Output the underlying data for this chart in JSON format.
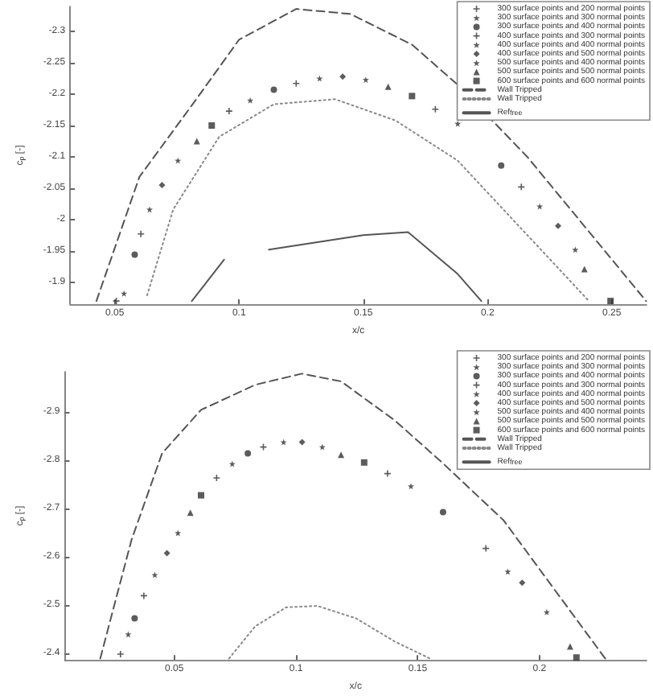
{
  "chart_data": [
    {
      "type": "scatter",
      "xlabel": "x/c",
      "ylabel": "c$_{p}$ [-]",
      "xlim": [
        0.032,
        0.264
      ],
      "ylim": [
        -1.865,
        -2.34
      ],
      "xticks": [
        0.05,
        0.1,
        0.15,
        0.2,
        0.25
      ],
      "yticks": [
        -2.3,
        -2.25,
        -2.2,
        -2.15,
        -2.1,
        -2.05,
        -2,
        -1.95,
        -1.9
      ],
      "grid": false,
      "legend": "top right",
      "series": [
        {
          "name": "300 surface points and 200 normal points",
          "color": "#333333",
          "marker": "cross",
          "x": [
            0.0506,
            0.096,
            0.179
          ],
          "values": [
            -1.87,
            -2.173,
            -2.176
          ]
        },
        {
          "name": "300 surface points and 300 normal points",
          "color": "#333333",
          "marker": "star",
          "x": [
            0.0537,
            0.1045,
            0.188
          ],
          "values": [
            -1.882,
            -2.19,
            -2.153
          ]
        },
        {
          "name": "300 surface points and 400 normal points",
          "color": "#333333",
          "marker": "circle",
          "x": [
            0.058,
            0.114,
            0.2055
          ],
          "values": [
            -1.944,
            -2.207,
            -2.086
          ]
        },
        {
          "name": "400 surface points and 300 normal points",
          "color": "#333333",
          "marker": "cross",
          "x": [
            0.0605,
            0.123,
            0.2136
          ],
          "values": [
            -1.977,
            -2.217,
            -2.052
          ]
        },
        {
          "name": "400 surface points and 400 normal points",
          "color": "#333333",
          "marker": "star",
          "x": [
            0.064,
            0.1324,
            0.221
          ],
          "values": [
            -2.016,
            -2.225,
            -2.021
          ]
        },
        {
          "name": "400 surface points and 500 normal points",
          "color": "#333333",
          "marker": "diamond",
          "x": [
            0.069,
            0.1417,
            0.2284
          ],
          "values": [
            -2.055,
            -2.228,
            -1.99
          ]
        },
        {
          "name": "500 surface points and 400 normal points",
          "color": "#333333",
          "marker": "star",
          "x": [
            0.0754,
            0.151,
            0.2353
          ],
          "values": [
            -2.094,
            -2.223,
            -1.952
          ]
        },
        {
          "name": "500 surface points and 500 normal points",
          "color": "#333333",
          "marker": "triangle",
          "x": [
            0.083,
            0.16,
            0.239
          ],
          "values": [
            -2.125,
            -2.212,
            -1.921
          ]
        },
        {
          "name": "600 surface points and 600 normal points",
          "color": "#333333",
          "marker": "square",
          "x": [
            0.089,
            0.1696,
            0.2495
          ],
          "values": [
            -2.15,
            -2.197,
            -1.87
          ]
        },
        {
          "name": "Wall Tripped",
          "type": "line",
          "color": "#555555",
          "line_style": "dashed",
          "marker": "none",
          "x": [
            0.0426,
            0.0599,
            0.0828,
            0.1,
            0.123,
            0.1448,
            0.1696,
            0.188,
            0.216,
            0.2638
          ],
          "values": [
            -1.87,
            -2.068,
            -2.192,
            -2.287,
            -2.336,
            -2.328,
            -2.279,
            -2.215,
            -2.1,
            -1.87
          ]
        },
        {
          "name": "Wall Tripped",
          "type": "line",
          "color": "#888888",
          "line_style": "dotted",
          "marker": "none",
          "x": [
            0.063,
            0.0735,
            0.092,
            0.114,
            0.1386,
            0.163,
            0.188,
            0.2408
          ],
          "values": [
            -1.879,
            -2.016,
            -2.132,
            -2.184,
            -2.192,
            -2.158,
            -2.094,
            -1.87
          ]
        },
        {
          "name": "Ref$_{free}$",
          "type": "line",
          "color": "#555555",
          "line_style": "solid",
          "marker": "none",
          "x": [
            0.081,
            0.094,
            0.103,
            0.112,
            0.15,
            0.168,
            0.188,
            0.1975
          ],
          "values": [
            -1.87,
            -1.936,
            null,
            -1.952,
            -1.975,
            -1.98,
            -1.913,
            -1.87
          ]
        }
      ]
    },
    {
      "type": "scatter",
      "xlabel": "x/c",
      "ylabel": "c$_{p}$ [-]",
      "xlim": [
        0.005,
        0.244
      ],
      "ylim": [
        -2.387,
        -2.984
      ],
      "xticks": [
        0.05,
        0.1,
        0.15,
        0.2
      ],
      "yticks": [
        -2.9,
        -2.8,
        -2.7,
        -2.6,
        -2.5,
        -2.4
      ],
      "grid": false,
      "legend": "top right",
      "series": [
        {
          "name": "300 surface points and 200 normal points",
          "color": "#333333",
          "marker": "cross",
          "x": [
            0.0279,
            0.0674,
            0.1376
          ],
          "values": [
            -2.399,
            -2.764,
            -2.773
          ]
        },
        {
          "name": "300 surface points and 300 normal points",
          "color": "#333333",
          "marker": "star",
          "x": [
            0.0311,
            0.0738,
            0.1472
          ],
          "values": [
            -2.44,
            -2.793,
            -2.747
          ]
        },
        {
          "name": "300 surface points and 400 normal points",
          "color": "#333333",
          "marker": "circle",
          "x": [
            0.0337,
            0.0802,
            0.1604
          ],
          "values": [
            -2.473,
            -2.815,
            -2.693
          ]
        },
        {
          "name": "400 surface points and 300 normal points",
          "color": "#333333",
          "marker": "cross",
          "x": [
            0.0375,
            0.0866,
            0.178
          ],
          "values": [
            -2.52,
            -2.828,
            -2.618
          ]
        },
        {
          "name": "400 surface points and 400 normal points",
          "color": "#333333",
          "marker": "star",
          "x": [
            0.042,
            0.0949,
            0.187
          ],
          "values": [
            -2.563,
            -2.838,
            -2.57
          ]
        },
        {
          "name": "400 surface points and 500 normal points",
          "color": "#333333",
          "marker": "diamond",
          "x": [
            0.047,
            0.1025,
            0.1929
          ],
          "values": [
            -2.608,
            -2.838,
            -2.547
          ]
        },
        {
          "name": "500 surface points and 400 normal points",
          "color": "#333333",
          "marker": "star",
          "x": [
            0.0515,
            0.1108,
            0.203
          ],
          "values": [
            -2.65,
            -2.828,
            -2.486
          ]
        },
        {
          "name": "500 surface points and 500 normal points",
          "color": "#333333",
          "marker": "triangle",
          "x": [
            0.0566,
            0.1185,
            0.2126
          ],
          "values": [
            -2.692,
            -2.812,
            -2.415
          ]
        },
        {
          "name": "600 surface points and 600 normal points",
          "color": "#333333",
          "marker": "square",
          "x": [
            0.061,
            0.128,
            0.2152
          ],
          "values": [
            -2.728,
            -2.796,
            -2.392
          ]
        },
        {
          "name": "Wall Tripped",
          "type": "line",
          "color": "#555555",
          "line_style": "dashed",
          "marker": "none",
          "x": [
            0.0196,
            0.0324,
            0.045,
            0.061,
            0.0833,
            0.1024,
            0.1185,
            0.1406,
            0.16,
            0.1853,
            0.227
          ],
          "values": [
            -2.39,
            -2.635,
            -2.815,
            -2.905,
            -2.957,
            -2.98,
            -2.964,
            -2.883,
            -2.796,
            -2.676,
            -2.39
          ]
        },
        {
          "name": "Wall Tripped",
          "type": "line",
          "color": "#888888",
          "line_style": "dotted",
          "marker": "none",
          "x": [
            0.0725,
            0.0833,
            0.096,
            0.1088,
            0.1247,
            0.1406,
            0.155
          ],
          "values": [
            -2.39,
            -2.457,
            -2.496,
            -2.499,
            -2.473,
            -2.425,
            -2.39
          ]
        },
        {
          "name": "Ref$_{free}$",
          "type": "line",
          "color": "#555555",
          "line_style": "solid",
          "marker": "none"
        }
      ]
    }
  ]
}
